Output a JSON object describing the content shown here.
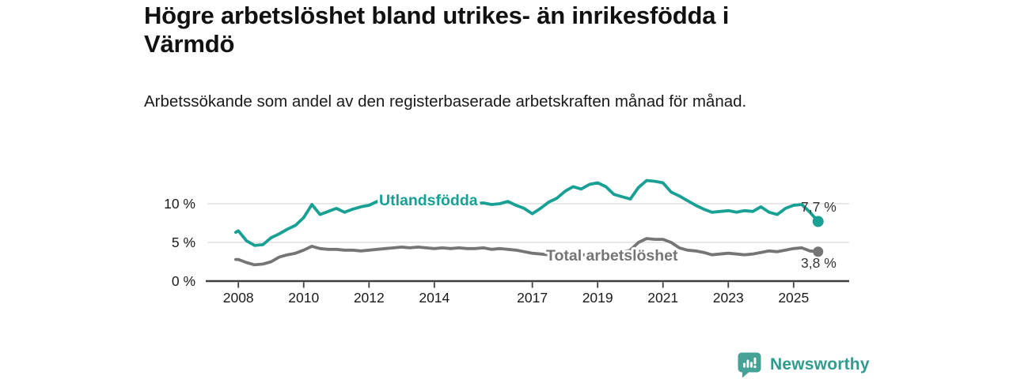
{
  "header": {
    "title": "Högre arbetslöshet bland utrikes- än inrikesfödda i Värmdö",
    "subtitle": "Arbetssökande som andel av den registerbaserade arbetskraften månad för månad."
  },
  "branding": {
    "logo_text": "Newsworthy",
    "logo_icon": "speech-bubble-bar-chart-icon",
    "logo_icon_color": "#44a296",
    "logo_text_color": "#2e9c8e"
  },
  "colors": {
    "accent_teal": "#17a093",
    "series_gray": "#757575",
    "axis": "#3f3f3f",
    "grid": "#d9d9d9",
    "text": "#1a1a1a",
    "end_label_text": "#333333",
    "background": "#ffffff"
  },
  "chart_data": {
    "type": "line",
    "title": "Högre arbetslöshet bland utrikes- än inrikesfödda i Värmdö",
    "subtitle": "Arbetssökande som andel av den registerbaserade arbetskraften månad för månad.",
    "unit": "%",
    "grid": "horizontal",
    "legend": "inline-labels",
    "xlim": [
      2007.05,
      2026.7
    ],
    "ylim": [
      0,
      13.7
    ],
    "x_ticks": [
      {
        "value": 2008,
        "label": "2008"
      },
      {
        "value": 2010,
        "label": "2010"
      },
      {
        "value": 2012,
        "label": "2012"
      },
      {
        "value": 2014,
        "label": "2014"
      },
      {
        "value": 2017,
        "label": "2017"
      },
      {
        "value": 2019,
        "label": "2019"
      },
      {
        "value": 2021,
        "label": "2021"
      },
      {
        "value": 2023,
        "label": "2023"
      },
      {
        "value": 2025,
        "label": "2025"
      }
    ],
    "y_ticks": [
      {
        "value": 0,
        "label": "0 %"
      },
      {
        "value": 5,
        "label": "5 %"
      },
      {
        "value": 10,
        "label": "10 %"
      }
    ],
    "x": [
      2007.92,
      2008.0,
      2008.25,
      2008.5,
      2008.75,
      2009.0,
      2009.25,
      2009.5,
      2009.75,
      2010.0,
      2010.25,
      2010.5,
      2010.75,
      2011.0,
      2011.25,
      2011.5,
      2011.75,
      2012.0,
      2012.25,
      2012.5,
      2012.75,
      2013.0,
      2013.25,
      2013.5,
      2013.75,
      2014.0,
      2014.25,
      2014.5,
      2014.75,
      2015.0,
      2015.25,
      2015.5,
      2015.75,
      2016.0,
      2016.25,
      2016.5,
      2016.75,
      2017.0,
      2017.25,
      2017.5,
      2017.75,
      2018.0,
      2018.25,
      2018.5,
      2018.75,
      2019.0,
      2019.25,
      2019.5,
      2019.75,
      2020.0,
      2020.25,
      2020.5,
      2020.75,
      2021.0,
      2021.25,
      2021.5,
      2021.75,
      2022.0,
      2022.25,
      2022.5,
      2022.75,
      2023.0,
      2023.25,
      2023.5,
      2023.75,
      2024.0,
      2024.25,
      2024.5,
      2024.75,
      2025.0,
      2025.25,
      2025.5,
      2025.75
    ],
    "series": [
      {
        "name": "Utlandsfödda",
        "color": "#17a093",
        "end_label": "7,7 %",
        "end_value": 7.7,
        "values": [
          6.3,
          6.5,
          5.2,
          4.6,
          4.7,
          5.6,
          6.1,
          6.7,
          7.2,
          8.2,
          9.9,
          8.6,
          9.0,
          9.4,
          8.9,
          9.3,
          9.6,
          9.8,
          10.3,
          10.1,
          10.2,
          10.4,
          10.2,
          10.3,
          10.1,
          10.2,
          10.4,
          10.2,
          10.3,
          10.2,
          10.0,
          10.1,
          9.9,
          10.0,
          10.3,
          9.8,
          9.4,
          8.7,
          9.4,
          10.2,
          10.7,
          11.6,
          12.2,
          11.9,
          12.5,
          12.7,
          12.2,
          11.2,
          10.9,
          10.6,
          12.1,
          13.0,
          12.9,
          12.7,
          11.5,
          11.0,
          10.4,
          9.8,
          9.3,
          8.9,
          9.0,
          9.1,
          8.9,
          9.1,
          9.0,
          9.6,
          8.9,
          8.6,
          9.4,
          9.8,
          9.9,
          8.9,
          7.7
        ]
      },
      {
        "name": "Total arbetslöshet",
        "color": "#757575",
        "end_label": "3,8 %",
        "end_value": 3.8,
        "values": [
          2.8,
          2.8,
          2.4,
          2.1,
          2.2,
          2.5,
          3.1,
          3.4,
          3.6,
          4.0,
          4.5,
          4.2,
          4.1,
          4.1,
          4.0,
          4.0,
          3.9,
          4.0,
          4.1,
          4.2,
          4.3,
          4.4,
          4.3,
          4.4,
          4.3,
          4.2,
          4.3,
          4.2,
          4.3,
          4.2,
          4.2,
          4.3,
          4.1,
          4.2,
          4.1,
          4.0,
          3.8,
          3.6,
          3.5,
          3.4,
          3.3,
          3.4,
          3.3,
          3.4,
          3.4,
          3.5,
          3.6,
          3.6,
          3.7,
          4.0,
          5.0,
          5.5,
          5.4,
          5.4,
          5.0,
          4.3,
          4.0,
          3.9,
          3.7,
          3.4,
          3.5,
          3.6,
          3.5,
          3.4,
          3.5,
          3.7,
          3.9,
          3.8,
          4.0,
          4.2,
          4.3,
          3.9,
          3.8
        ]
      }
    ]
  }
}
